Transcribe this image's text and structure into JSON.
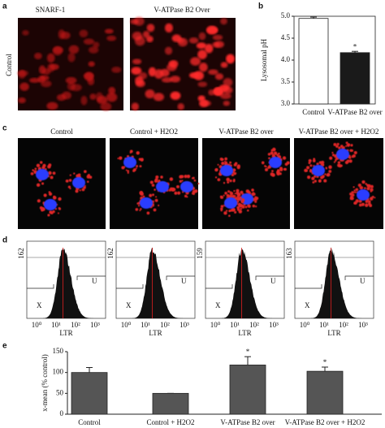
{
  "panel_labels": [
    "a",
    "b",
    "c",
    "d",
    "e"
  ],
  "panel_a": {
    "row_label": "Control",
    "titles": [
      "SNARF-1",
      "V-ATPase B2 Over"
    ]
  },
  "chart_data": [
    {
      "type": "bar",
      "ylabel": "Lysosomal pH",
      "categories": [
        "Control",
        "V-ATPase B2 over"
      ],
      "values": [
        4.95,
        4.17
      ],
      "errors": [
        0.03,
        0.03
      ],
      "colors": [
        "#ffffff",
        "#1a1a1a"
      ],
      "ylim": [
        3.0,
        5.0
      ],
      "yticks": [
        {
          "value": 3,
          "label": "3.0"
        },
        {
          "value": 3.5,
          "label": "3.5"
        },
        {
          "value": 4,
          "label": "4.0"
        },
        {
          "value": 4.5,
          "label": "4.5"
        },
        {
          "value": 5,
          "label": "5.0"
        }
      ],
      "annotations": [
        {
          "text": "*",
          "category": 1
        }
      ],
      "frame": true
    },
    {
      "type": "bar",
      "ylabel": "x-mean (% control)",
      "categories": [
        "Control",
        "Control + H2O2",
        "V-ATPase B2 over",
        "V-ATPase B2 over + H2O2"
      ],
      "values": [
        100,
        50,
        118,
        103
      ],
      "errors": [
        12,
        0,
        20,
        10
      ],
      "colors": [
        "#555555",
        "#555555",
        "#555555",
        "#555555"
      ],
      "ylim": [
        0,
        150
      ],
      "yticks": [
        0,
        50,
        100,
        150
      ],
      "annotations": [
        {
          "text": "*",
          "category": 2
        },
        {
          "text": "*",
          "category": 3
        }
      ],
      "frame": false
    }
  ],
  "panel_c": {
    "titles": [
      "Control",
      "Control + H2O2",
      "V-ATPase B2 over",
      "V-ATPase B2 over + H2O2"
    ]
  },
  "panel_d": {
    "xlabel": "LTR",
    "xticks": [
      "10⁰",
      "10¹",
      "10²",
      "10³"
    ],
    "gates": [
      "X",
      "U"
    ],
    "ymax_labels": [
      "162",
      "162",
      "159",
      "163"
    ]
  }
}
